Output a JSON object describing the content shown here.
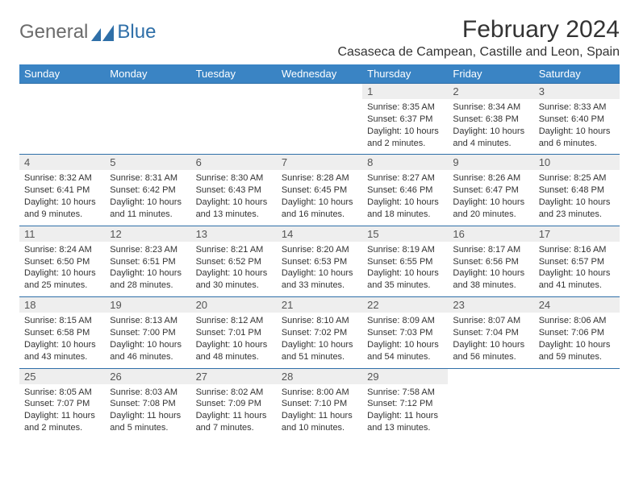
{
  "brand": {
    "general": "General",
    "blue": "Blue"
  },
  "title": "February 2024",
  "location": "Casaseca de Campean, Castille and Leon, Spain",
  "colors": {
    "header_bg": "#3a84c4",
    "header_text": "#ffffff",
    "rule": "#2f6fa8",
    "daynum_bg": "#eeeeee",
    "body_text": "#333333",
    "brand_gray": "#6b6b6b",
    "brand_blue": "#2f6fa8"
  },
  "day_headers": [
    "Sunday",
    "Monday",
    "Tuesday",
    "Wednesday",
    "Thursday",
    "Friday",
    "Saturday"
  ],
  "weeks": [
    [
      {
        "n": "",
        "sr": "",
        "ss": "",
        "dl": ""
      },
      {
        "n": "",
        "sr": "",
        "ss": "",
        "dl": ""
      },
      {
        "n": "",
        "sr": "",
        "ss": "",
        "dl": ""
      },
      {
        "n": "",
        "sr": "",
        "ss": "",
        "dl": ""
      },
      {
        "n": "1",
        "sr": "Sunrise: 8:35 AM",
        "ss": "Sunset: 6:37 PM",
        "dl": "Daylight: 10 hours and 2 minutes."
      },
      {
        "n": "2",
        "sr": "Sunrise: 8:34 AM",
        "ss": "Sunset: 6:38 PM",
        "dl": "Daylight: 10 hours and 4 minutes."
      },
      {
        "n": "3",
        "sr": "Sunrise: 8:33 AM",
        "ss": "Sunset: 6:40 PM",
        "dl": "Daylight: 10 hours and 6 minutes."
      }
    ],
    [
      {
        "n": "4",
        "sr": "Sunrise: 8:32 AM",
        "ss": "Sunset: 6:41 PM",
        "dl": "Daylight: 10 hours and 9 minutes."
      },
      {
        "n": "5",
        "sr": "Sunrise: 8:31 AM",
        "ss": "Sunset: 6:42 PM",
        "dl": "Daylight: 10 hours and 11 minutes."
      },
      {
        "n": "6",
        "sr": "Sunrise: 8:30 AM",
        "ss": "Sunset: 6:43 PM",
        "dl": "Daylight: 10 hours and 13 minutes."
      },
      {
        "n": "7",
        "sr": "Sunrise: 8:28 AM",
        "ss": "Sunset: 6:45 PM",
        "dl": "Daylight: 10 hours and 16 minutes."
      },
      {
        "n": "8",
        "sr": "Sunrise: 8:27 AM",
        "ss": "Sunset: 6:46 PM",
        "dl": "Daylight: 10 hours and 18 minutes."
      },
      {
        "n": "9",
        "sr": "Sunrise: 8:26 AM",
        "ss": "Sunset: 6:47 PM",
        "dl": "Daylight: 10 hours and 20 minutes."
      },
      {
        "n": "10",
        "sr": "Sunrise: 8:25 AM",
        "ss": "Sunset: 6:48 PM",
        "dl": "Daylight: 10 hours and 23 minutes."
      }
    ],
    [
      {
        "n": "11",
        "sr": "Sunrise: 8:24 AM",
        "ss": "Sunset: 6:50 PM",
        "dl": "Daylight: 10 hours and 25 minutes."
      },
      {
        "n": "12",
        "sr": "Sunrise: 8:23 AM",
        "ss": "Sunset: 6:51 PM",
        "dl": "Daylight: 10 hours and 28 minutes."
      },
      {
        "n": "13",
        "sr": "Sunrise: 8:21 AM",
        "ss": "Sunset: 6:52 PM",
        "dl": "Daylight: 10 hours and 30 minutes."
      },
      {
        "n": "14",
        "sr": "Sunrise: 8:20 AM",
        "ss": "Sunset: 6:53 PM",
        "dl": "Daylight: 10 hours and 33 minutes."
      },
      {
        "n": "15",
        "sr": "Sunrise: 8:19 AM",
        "ss": "Sunset: 6:55 PM",
        "dl": "Daylight: 10 hours and 35 minutes."
      },
      {
        "n": "16",
        "sr": "Sunrise: 8:17 AM",
        "ss": "Sunset: 6:56 PM",
        "dl": "Daylight: 10 hours and 38 minutes."
      },
      {
        "n": "17",
        "sr": "Sunrise: 8:16 AM",
        "ss": "Sunset: 6:57 PM",
        "dl": "Daylight: 10 hours and 41 minutes."
      }
    ],
    [
      {
        "n": "18",
        "sr": "Sunrise: 8:15 AM",
        "ss": "Sunset: 6:58 PM",
        "dl": "Daylight: 10 hours and 43 minutes."
      },
      {
        "n": "19",
        "sr": "Sunrise: 8:13 AM",
        "ss": "Sunset: 7:00 PM",
        "dl": "Daylight: 10 hours and 46 minutes."
      },
      {
        "n": "20",
        "sr": "Sunrise: 8:12 AM",
        "ss": "Sunset: 7:01 PM",
        "dl": "Daylight: 10 hours and 48 minutes."
      },
      {
        "n": "21",
        "sr": "Sunrise: 8:10 AM",
        "ss": "Sunset: 7:02 PM",
        "dl": "Daylight: 10 hours and 51 minutes."
      },
      {
        "n": "22",
        "sr": "Sunrise: 8:09 AM",
        "ss": "Sunset: 7:03 PM",
        "dl": "Daylight: 10 hours and 54 minutes."
      },
      {
        "n": "23",
        "sr": "Sunrise: 8:07 AM",
        "ss": "Sunset: 7:04 PM",
        "dl": "Daylight: 10 hours and 56 minutes."
      },
      {
        "n": "24",
        "sr": "Sunrise: 8:06 AM",
        "ss": "Sunset: 7:06 PM",
        "dl": "Daylight: 10 hours and 59 minutes."
      }
    ],
    [
      {
        "n": "25",
        "sr": "Sunrise: 8:05 AM",
        "ss": "Sunset: 7:07 PM",
        "dl": "Daylight: 11 hours and 2 minutes."
      },
      {
        "n": "26",
        "sr": "Sunrise: 8:03 AM",
        "ss": "Sunset: 7:08 PM",
        "dl": "Daylight: 11 hours and 5 minutes."
      },
      {
        "n": "27",
        "sr": "Sunrise: 8:02 AM",
        "ss": "Sunset: 7:09 PM",
        "dl": "Daylight: 11 hours and 7 minutes."
      },
      {
        "n": "28",
        "sr": "Sunrise: 8:00 AM",
        "ss": "Sunset: 7:10 PM",
        "dl": "Daylight: 11 hours and 10 minutes."
      },
      {
        "n": "29",
        "sr": "Sunrise: 7:58 AM",
        "ss": "Sunset: 7:12 PM",
        "dl": "Daylight: 11 hours and 13 minutes."
      },
      {
        "n": "",
        "sr": "",
        "ss": "",
        "dl": ""
      },
      {
        "n": "",
        "sr": "",
        "ss": "",
        "dl": ""
      }
    ]
  ]
}
